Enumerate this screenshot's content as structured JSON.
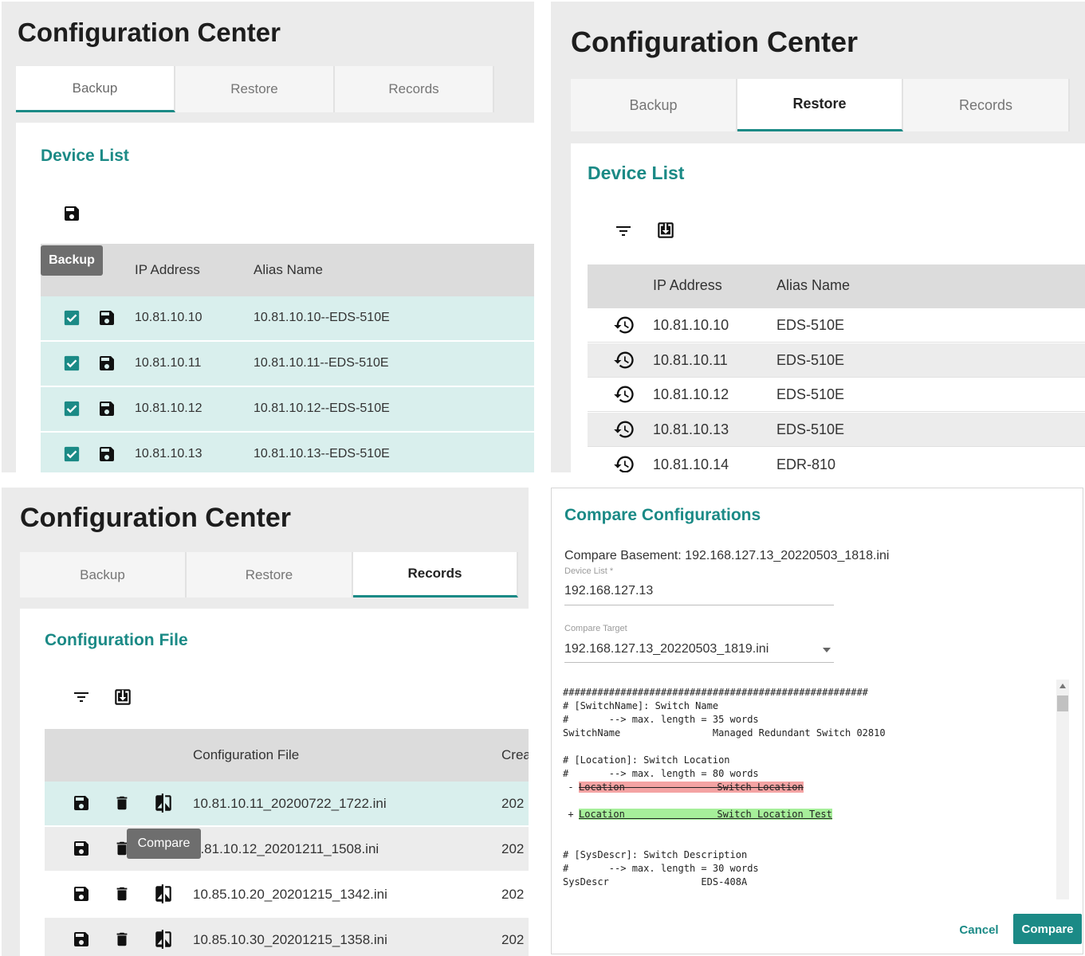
{
  "app_title": "Configuration Center",
  "tabs": [
    "Backup",
    "Restore",
    "Records"
  ],
  "backup_panel": {
    "section": "Device List",
    "tooltip": "Backup",
    "columns": [
      "IP Address",
      "Alias Name"
    ],
    "rows": [
      {
        "ip": "10.81.10.10",
        "alias": "10.81.10.10--EDS-510E"
      },
      {
        "ip": "10.81.10.11",
        "alias": "10.81.10.11--EDS-510E"
      },
      {
        "ip": "10.81.10.12",
        "alias": "10.81.10.12--EDS-510E"
      },
      {
        "ip": "10.81.10.13",
        "alias": "10.81.10.13--EDS-510E"
      }
    ]
  },
  "restore_panel": {
    "section": "Device List",
    "columns": [
      "IP Address",
      "Alias Name"
    ],
    "rows": [
      {
        "ip": "10.81.10.10",
        "alias": "EDS-510E"
      },
      {
        "ip": "10.81.10.11",
        "alias": "EDS-510E"
      },
      {
        "ip": "10.81.10.12",
        "alias": "EDS-510E"
      },
      {
        "ip": "10.81.10.13",
        "alias": "EDS-510E"
      },
      {
        "ip": "10.81.10.14",
        "alias": "EDR-810"
      }
    ]
  },
  "records_panel": {
    "section": "Configuration File",
    "tooltip": "Compare",
    "columns": [
      "Configuration File",
      "Crea"
    ],
    "rows": [
      {
        "file": "10.81.10.11_20200722_1722.ini",
        "created": "202"
      },
      {
        "file": "0.81.10.12_20201211_1508.ini",
        "created": "202"
      },
      {
        "file": "10.85.10.20_20201215_1342.ini",
        "created": "202"
      },
      {
        "file": "10.85.10.30_20201215_1358.ini",
        "created": "202"
      }
    ]
  },
  "compare_dialog": {
    "title": "Compare Configurations",
    "basement": "Compare Basement: 192.168.127.13_20220503_1818.ini",
    "device_list_label": "Device List *",
    "device_list_value": "192.168.127.13",
    "target_label": "Compare Target",
    "target_value": "192.168.127.13_20220503_1819.ini",
    "diff_lines": [
      {
        "text": "#####################################################",
        "type": "normal"
      },
      {
        "text": "# [SwitchName]: Switch Name",
        "type": "normal"
      },
      {
        "text": "#       --> max. length = 35 words",
        "type": "normal"
      },
      {
        "text": "SwitchName                Managed Redundant Switch 02810",
        "type": "normal"
      },
      {
        "text": "",
        "type": "normal"
      },
      {
        "text": "# [Location]: Switch Location",
        "type": "normal"
      },
      {
        "text": "#       --> max. length = 80 words",
        "type": "normal"
      },
      {
        "text": "Location                Switch Location",
        "type": "removed"
      },
      {
        "text": "",
        "type": "normal"
      },
      {
        "text": "Location                Switch Location Test",
        "type": "added"
      },
      {
        "text": "",
        "type": "normal"
      },
      {
        "text": "",
        "type": "normal"
      },
      {
        "text": "# [SysDescr]: Switch Description",
        "type": "normal"
      },
      {
        "text": "#       --> max. length = 30 words",
        "type": "normal"
      },
      {
        "text": "SysDescr                EDS-408A",
        "type": "normal"
      }
    ],
    "cancel_label": "Cancel",
    "compare_label": "Compare",
    "colors": {
      "accent": "#1b8a86",
      "removed": "#f4a3a3",
      "added": "#a6ef9a"
    }
  }
}
